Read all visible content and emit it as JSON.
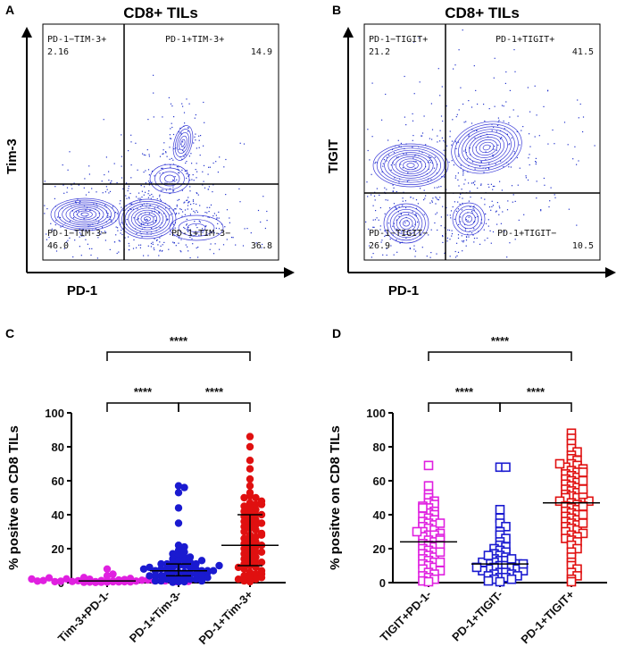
{
  "chart_data": [
    {
      "panel": "A",
      "type": "scatter",
      "title": "CD8+ TILs",
      "xlabel": "PD-1",
      "ylabel": "Tim-3",
      "quadrants": [
        {
          "label": "PD-1−TIM-3+",
          "value": "2.16"
        },
        {
          "label": "PD-1+TIM-3+",
          "value": "14.9"
        },
        {
          "label": "PD-1−TIM-3−",
          "value": "46.0"
        },
        {
          "label": "PD-1+TIM-3−",
          "value": "36.8"
        }
      ]
    },
    {
      "panel": "B",
      "type": "scatter",
      "title": "CD8+ TILs",
      "xlabel": "PD-1",
      "ylabel": "TIGIT",
      "quadrants": [
        {
          "label": "PD-1−TIGIT+",
          "value": "21.2"
        },
        {
          "label": "PD-1+TIGIT+",
          "value": "41.5"
        },
        {
          "label": "PD-1−TIGIT−",
          "value": "26.9"
        },
        {
          "label": "PD-1+TIGIT−",
          "value": "10.5"
        }
      ]
    },
    {
      "panel": "C",
      "type": "scatter",
      "ylabel": "% positve on CD8 TILs",
      "ylim": [
        0,
        100
      ],
      "yticks": [
        "0",
        "20",
        "40",
        "60",
        "80",
        "100"
      ],
      "categories": [
        "Tim-3+PD-1-",
        "PD-1+Tim-3-",
        "PD-1+Tim-3+"
      ],
      "colors": [
        "#e020e0",
        "#1a1ad0",
        "#e01010"
      ],
      "marker": "circle",
      "series": [
        {
          "values": [
            0.3,
            0.5,
            0.8,
            1,
            1.2,
            1.5,
            0.2,
            0.6,
            1.8,
            2,
            2.5,
            3,
            4,
            0.4,
            0.9,
            1.1,
            1.4,
            0.7,
            5,
            8,
            0.1,
            1.6,
            2.2,
            0.5,
            1.3,
            0.8,
            3.5,
            0.6,
            1,
            2.8,
            0.3,
            1.9,
            0.4,
            0.2,
            1.2,
            0.6,
            0.9,
            1.5,
            2.1,
            0.7
          ],
          "median": 1
        },
        {
          "values": [
            57,
            56,
            53,
            44,
            35,
            22,
            21,
            19,
            18,
            17,
            16,
            15,
            14,
            13,
            13,
            12,
            12,
            11,
            11,
            10,
            10,
            9,
            9,
            8,
            8,
            8,
            7,
            7,
            7,
            6,
            6,
            6,
            5,
            5,
            5,
            4,
            4,
            4,
            3,
            3,
            3,
            2,
            2,
            2,
            1,
            1,
            1,
            0.5,
            0.5,
            0.2,
            6,
            9,
            11,
            7,
            4,
            13,
            15,
            3,
            8,
            10
          ],
          "median": 7,
          "q1": 4,
          "q3": 11
        },
        {
          "values": [
            86,
            80,
            72,
            67,
            61,
            57,
            53,
            51,
            50,
            50,
            48,
            47,
            46,
            45,
            44,
            43,
            42,
            41,
            40,
            39,
            38,
            37,
            36,
            35,
            34,
            33,
            32,
            31,
            30,
            29,
            28,
            27,
            26,
            25,
            24,
            23,
            22,
            21,
            20,
            19,
            18,
            17,
            16,
            15,
            14,
            13,
            12,
            11,
            10,
            9,
            8,
            7,
            6,
            5,
            4,
            3,
            2,
            1,
            0.5,
            28,
            35,
            22,
            18,
            12,
            9,
            5,
            3,
            2,
            40,
            46
          ],
          "median": 22,
          "q1": 10,
          "q3": 40
        }
      ],
      "significance": [
        {
          "from": 0,
          "to": 2,
          "label": "****"
        },
        {
          "from": 0,
          "to": 1,
          "label": "****"
        },
        {
          "from": 1,
          "to": 2,
          "label": "****"
        }
      ]
    },
    {
      "panel": "D",
      "type": "scatter",
      "ylabel": "% positve on CD8 TILs",
      "ylim": [
        0,
        100
      ],
      "yticks": [
        "0",
        "20",
        "40",
        "60",
        "80",
        "100"
      ],
      "categories": [
        "TIGIT+PD-1-",
        "PD-1+TIGIT-",
        "PD-1+TIGIT+"
      ],
      "colors": [
        "#e020e0",
        "#1a1ad0",
        "#e01010"
      ],
      "marker": "square",
      "series": [
        {
          "values": [
            69,
            57,
            52,
            50,
            48,
            47,
            46,
            45,
            44,
            42,
            41,
            40,
            39,
            38,
            37,
            36,
            35,
            34,
            33,
            32,
            31,
            30,
            29,
            28,
            28,
            27,
            26,
            25,
            24,
            23,
            22,
            21,
            20,
            19,
            18,
            17,
            16,
            15,
            14,
            13,
            12,
            11,
            10,
            9,
            8,
            7,
            6,
            5,
            4,
            3,
            2,
            1,
            0.5,
            30,
            25,
            22,
            35,
            18,
            12,
            44
          ],
          "median": 24
        },
        {
          "values": [
            68,
            68,
            43,
            38,
            35,
            33,
            30,
            28,
            26,
            24,
            22,
            21,
            20,
            19,
            18,
            17,
            16,
            15,
            14,
            13,
            13,
            12,
            12,
            11,
            11,
            10,
            10,
            9,
            9,
            8,
            8,
            7,
            7,
            6,
            6,
            5,
            5,
            4,
            4,
            3,
            3,
            2,
            2,
            1,
            0.5,
            14,
            12,
            16,
            9,
            11
          ],
          "median": 11
        },
        {
          "values": [
            88,
            85,
            82,
            79,
            77,
            75,
            73,
            72,
            70,
            69,
            68,
            67,
            66,
            65,
            64,
            63,
            62,
            61,
            60,
            59,
            58,
            57,
            56,
            55,
            54,
            53,
            52,
            51,
            50,
            50,
            49,
            48,
            47,
            46,
            45,
            44,
            43,
            42,
            41,
            40,
            39,
            38,
            37,
            36,
            35,
            34,
            33,
            32,
            31,
            30,
            29,
            28,
            27,
            26,
            25,
            24,
            22,
            20,
            18,
            15,
            12,
            10,
            8,
            6,
            4,
            2,
            0.5,
            48,
            52,
            55,
            45,
            40,
            60,
            65,
            70,
            35
          ],
          "median": 47
        }
      ],
      "significance": [
        {
          "from": 0,
          "to": 2,
          "label": "****"
        },
        {
          "from": 0,
          "to": 1,
          "label": "****"
        },
        {
          "from": 1,
          "to": 2,
          "label": "****"
        }
      ]
    }
  ]
}
